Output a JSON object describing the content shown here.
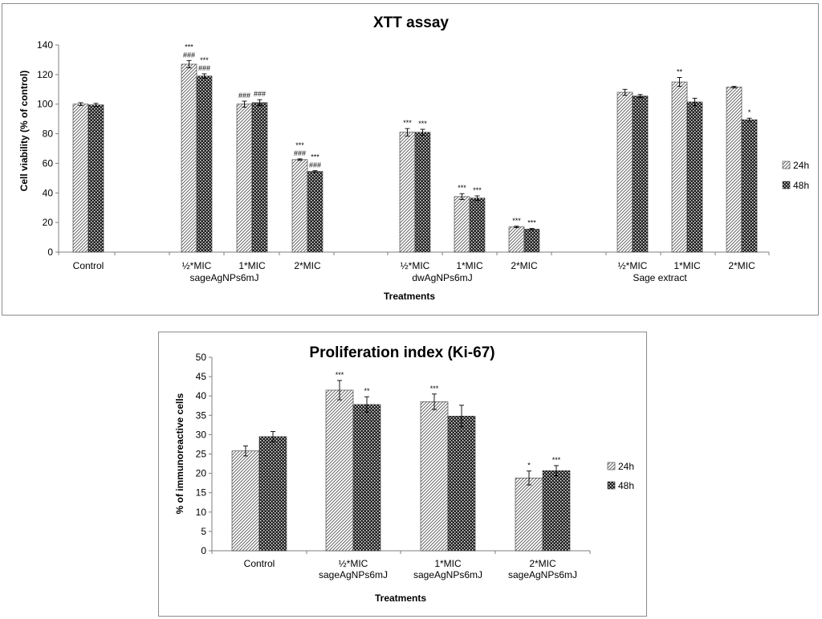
{
  "colors": {
    "series_24h": "#e8e8e8",
    "series_48h": "#3a3a3a",
    "axis": "#7f7f7f",
    "border": "#8c8c8c"
  },
  "chart_data": [
    {
      "type": "bar",
      "title": "XTT assay",
      "xlabel": "Treatments",
      "ylabel": "Cell viability (% of control)",
      "ylim": [
        0,
        140
      ],
      "yticks": [
        "0",
        "20",
        "40",
        "60",
        "80",
        "100",
        "120",
        "140"
      ],
      "grid": false,
      "legend_position": "right",
      "categories": [
        "Control",
        "½*MIC",
        "1*MIC",
        "2*MIC",
        "½*MIC",
        "1*MIC",
        "2*MIC",
        "½*MIC",
        "1*MIC",
        "2*MIC"
      ],
      "group_labels": [
        "",
        "sageAgNPs6mJ",
        "",
        "",
        "dwAgNPs6mJ",
        "",
        "",
        "Sage extract",
        ""
      ],
      "series": [
        {
          "name": "24h",
          "pattern": "diagonal",
          "values": [
            100,
            127,
            100,
            62.5,
            81,
            37.5,
            17,
            108,
            115,
            111.5
          ],
          "errors": [
            1,
            2.5,
            2,
            0.5,
            2.5,
            2,
            0.5,
            2,
            3,
            0.5
          ],
          "annotations": [
            [],
            [
              "***",
              "###"
            ],
            [
              "###"
            ],
            [
              "***",
              "###"
            ],
            [
              "***"
            ],
            [
              "***"
            ],
            [
              "***"
            ],
            [],
            [
              "**"
            ],
            []
          ]
        },
        {
          "name": "48h",
          "pattern": "checker",
          "values": [
            99.5,
            119,
            101,
            54.5,
            81,
            36.5,
            15.5,
            105.5,
            101.5,
            89.5
          ],
          "errors": [
            1,
            1.5,
            2,
            0.5,
            2,
            1.5,
            0.5,
            1,
            2.5,
            1
          ],
          "annotations": [
            [],
            [
              "***",
              "###"
            ],
            [
              "###"
            ],
            [
              "***",
              "###"
            ],
            [
              "***"
            ],
            [
              "***"
            ],
            [
              "***"
            ],
            [],
            [],
            [
              "*"
            ]
          ]
        }
      ]
    },
    {
      "type": "bar",
      "title": "Proliferation index (Ki-67)",
      "xlabel": "Treatments",
      "ylabel": "% of immunoreactive cells",
      "ylim": [
        0,
        50
      ],
      "yticks": [
        "0",
        "5",
        "10",
        "15",
        "20",
        "25",
        "30",
        "35",
        "40",
        "45",
        "50"
      ],
      "grid": false,
      "legend_position": "right",
      "categories": [
        "Control",
        "½*MIC sageAgNPs6mJ",
        "1*MIC sageAgNPs6mJ",
        "2*MIC sageAgNPs6mJ"
      ],
      "category_lines": [
        [
          "Control"
        ],
        [
          "½*MIC",
          "sageAgNPs6mJ"
        ],
        [
          "1*MIC",
          "sageAgNPs6mJ"
        ],
        [
          "2*MIC",
          "sageAgNPs6mJ"
        ]
      ],
      "series": [
        {
          "name": "24h",
          "pattern": "diagonal",
          "values": [
            25.8,
            41.5,
            38.5,
            18.8
          ],
          "errors": [
            1.3,
            2.5,
            2,
            1.8
          ],
          "annotations": [
            [],
            [
              "***"
            ],
            [
              "***"
            ],
            [
              "*"
            ]
          ]
        },
        {
          "name": "48h",
          "pattern": "checker",
          "values": [
            29.5,
            37.8,
            34.8,
            20.7
          ],
          "errors": [
            1.3,
            2,
            2.8,
            1.3
          ],
          "annotations": [
            [],
            [
              "**"
            ],
            [],
            [
              "***"
            ]
          ]
        }
      ]
    }
  ]
}
